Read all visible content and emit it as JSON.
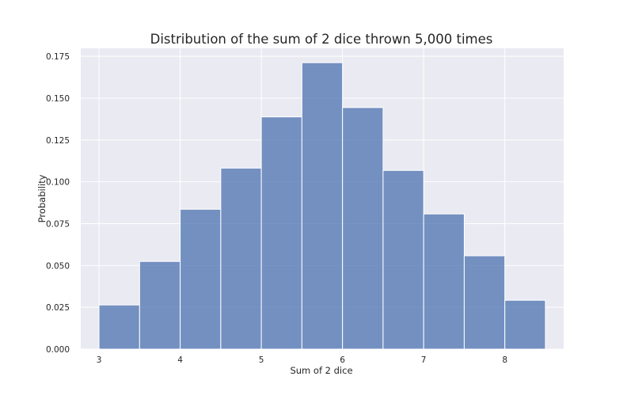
{
  "chart_data": {
    "type": "bar",
    "title": "Distribution of the sum of 2 dice thrown 5,000 times",
    "xlabel": "Sum of 2 dice",
    "ylabel": "Probability",
    "bin_edges": [
      3.0,
      3.5,
      4.0,
      4.5,
      5.0,
      5.5,
      6.0,
      6.5,
      7.0,
      7.5,
      8.0,
      8.5
    ],
    "values": [
      0.0264,
      0.0524,
      0.0836,
      0.1082,
      0.1388,
      0.1712,
      0.1444,
      0.1068,
      0.0808,
      0.0558,
      0.0292
    ],
    "xlim": [
      2.775,
      8.725
    ],
    "ylim": [
      0,
      0.1798
    ],
    "xticks": [
      3,
      4,
      5,
      6,
      7,
      8
    ],
    "xtick_labels": [
      "3",
      "4",
      "5",
      "6",
      "7",
      "8"
    ],
    "yticks": [
      0,
      0.025,
      0.05,
      0.075,
      0.1,
      0.125,
      0.15,
      0.175
    ],
    "ytick_labels": [
      "0.000",
      "0.025",
      "0.050",
      "0.075",
      "0.100",
      "0.125",
      "0.150",
      "0.175"
    ],
    "grid": true,
    "colors": {
      "background": "#eaeaf2",
      "bar": "#4c72b0",
      "grid": "#ffffff"
    }
  }
}
